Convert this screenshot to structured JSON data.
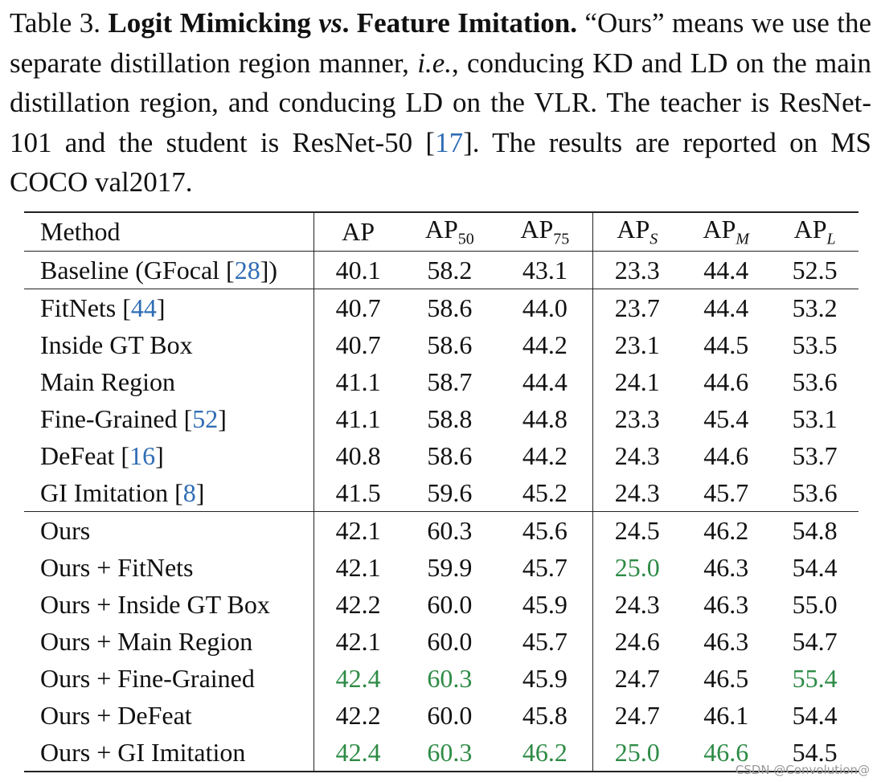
{
  "caption": {
    "label": "Table 3.",
    "title_a": "Logit Mimicking",
    "title_vs": "vs",
    "title_b": ". Feature Imitation.",
    "body_1": " “Ours” means we use the separate distillation region manner, ",
    "ie": "i.e.",
    "body_2": ", conducing KD and LD on the main distillation region, and conducing LD on the VLR. The teacher is ResNet-101 and the student is ResNet-50 [",
    "cite": "17",
    "body_3": "]. The results are reported on MS COCO val2017."
  },
  "header": {
    "method": "Method",
    "ap": "AP",
    "ap50_base": "AP",
    "ap50_sub": "50",
    "ap75_base": "AP",
    "ap75_sub": "75",
    "aps_base": "AP",
    "aps_sub": "S",
    "apm_base": "AP",
    "apm_sub": "M",
    "apl_base": "AP",
    "apl_sub": "L"
  },
  "rows": [
    {
      "name": "Baseline (GFocal [",
      "cite": "28",
      "tail": "])",
      "v": [
        "40.1",
        "58.2",
        "43.1",
        "23.3",
        "44.4",
        "52.5"
      ]
    },
    {
      "name": "FitNets [",
      "cite": "44",
      "tail": "]",
      "v": [
        "40.7",
        "58.6",
        "44.0",
        "23.7",
        "44.4",
        "53.2"
      ]
    },
    {
      "name": "Inside GT Box",
      "cite": "",
      "tail": "",
      "v": [
        "40.7",
        "58.6",
        "44.2",
        "23.1",
        "44.5",
        "53.5"
      ]
    },
    {
      "name": "Main Region",
      "cite": "",
      "tail": "",
      "v": [
        "41.1",
        "58.7",
        "44.4",
        "24.1",
        "44.6",
        "53.6"
      ]
    },
    {
      "name": "Fine-Grained [",
      "cite": "52",
      "tail": "]",
      "v": [
        "41.1",
        "58.8",
        "44.8",
        "23.3",
        "45.4",
        "53.1"
      ]
    },
    {
      "name": "DeFeat [",
      "cite": "16",
      "tail": "]",
      "v": [
        "40.8",
        "58.6",
        "44.2",
        "24.3",
        "44.6",
        "53.7"
      ]
    },
    {
      "name": "GI Imitation [",
      "cite": "8",
      "tail": "]",
      "v": [
        "41.5",
        "59.6",
        "45.2",
        "24.3",
        "45.7",
        "53.6"
      ]
    },
    {
      "name": "Ours",
      "cite": "",
      "tail": "",
      "v": [
        "42.1",
        "60.3",
        "45.6",
        "24.5",
        "46.2",
        "54.8"
      ]
    },
    {
      "name": "Ours + FitNets",
      "cite": "",
      "tail": "",
      "v": [
        "42.1",
        "59.9",
        "45.7",
        "25.0",
        "46.3",
        "54.4"
      ]
    },
    {
      "name": "Ours + Inside GT Box",
      "cite": "",
      "tail": "",
      "v": [
        "42.2",
        "60.0",
        "45.9",
        "24.3",
        "46.3",
        "55.0"
      ]
    },
    {
      "name": "Ours + Main Region",
      "cite": "",
      "tail": "",
      "v": [
        "42.1",
        "60.0",
        "45.7",
        "24.6",
        "46.3",
        "54.7"
      ]
    },
    {
      "name": "Ours + Fine-Grained",
      "cite": "",
      "tail": "",
      "v": [
        "42.4",
        "60.3",
        "45.9",
        "24.7",
        "46.5",
        "55.4"
      ]
    },
    {
      "name": "Ours + DeFeat",
      "cite": "",
      "tail": "",
      "v": [
        "42.2",
        "60.0",
        "45.8",
        "24.7",
        "46.1",
        "54.4"
      ]
    },
    {
      "name": "Ours + GI Imitation",
      "cite": "",
      "tail": "",
      "v": [
        "42.4",
        "60.3",
        "46.2",
        "25.0",
        "46.6",
        "54.5"
      ]
    }
  ],
  "styles": {
    "best_color": "#2e8b45",
    "cite_color": "#2f6db5"
  },
  "watermark": "CSDN @Convolution@"
}
